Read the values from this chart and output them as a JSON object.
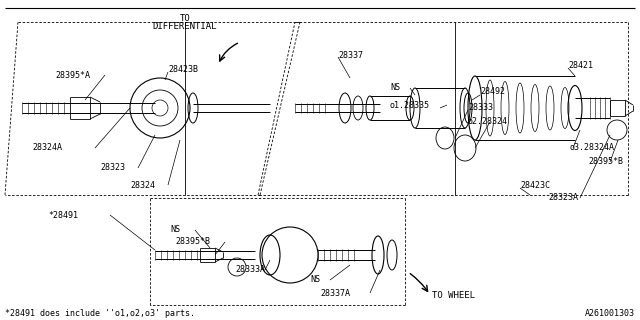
{
  "bg_color": "#ffffff",
  "line_color": "#000000",
  "text_color": "#000000",
  "figsize": [
    6.4,
    3.2
  ],
  "dpi": 100,
  "footnote": "*28491 does include ''o1,o2,o3' parts.",
  "part_number": "A261001303",
  "to_differential": "TO\nDIFFERENTIAL",
  "to_wheel": "TO WHEEL",
  "font_family": "monospace"
}
